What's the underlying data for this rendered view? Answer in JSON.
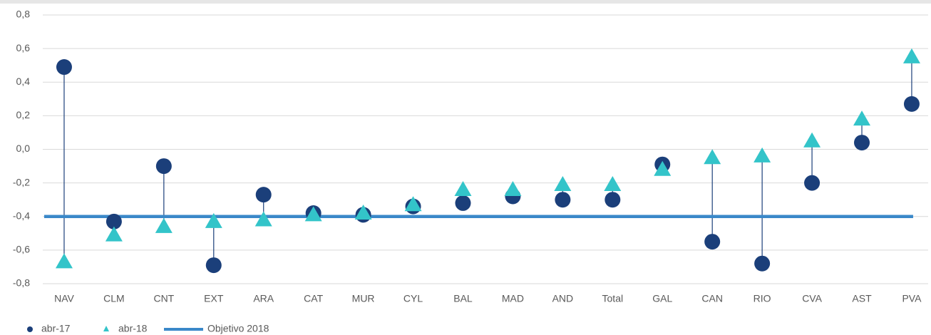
{
  "chart_data": {
    "type": "dotplot",
    "categories": [
      "NAV",
      "CLM",
      "CNT",
      "EXT",
      "ARA",
      "CAT",
      "MUR",
      "CYL",
      "BAL",
      "MAD",
      "AND",
      "Total",
      "GAL",
      "CAN",
      "RIO",
      "CVA",
      "AST",
      "PVA"
    ],
    "series": [
      {
        "name": "abr-17",
        "color": "#1b3f7a",
        "marker": "circle",
        "values": [
          0.49,
          -0.43,
          -0.1,
          -0.69,
          -0.27,
          -0.38,
          -0.39,
          -0.34,
          -0.32,
          -0.28,
          -0.3,
          -0.3,
          -0.09,
          -0.55,
          -0.68,
          -0.2,
          0.04,
          0.27
        ]
      },
      {
        "name": "abr-18",
        "color": "#33c4c9",
        "marker": "triangle",
        "values": [
          -0.67,
          -0.51,
          -0.46,
          -0.43,
          -0.42,
          -0.39,
          -0.38,
          -0.33,
          -0.24,
          -0.24,
          -0.21,
          -0.21,
          -0.12,
          -0.05,
          -0.04,
          0.05,
          0.18,
          0.55
        ]
      },
      {
        "name": "Objetivo 2018",
        "color": "#3a88c9",
        "marker": "line",
        "values": [
          -0.4,
          -0.4,
          -0.4,
          -0.4,
          -0.4,
          -0.4,
          -0.4,
          -0.4,
          -0.4,
          -0.4,
          -0.4,
          -0.4,
          -0.4,
          -0.4,
          -0.4,
          -0.4,
          -0.4,
          -0.4
        ]
      }
    ],
    "ylim": [
      -0.8,
      0.8
    ],
    "yticks": [
      {
        "value": -0.8,
        "label": "-0,8"
      },
      {
        "value": -0.6,
        "label": "-0,6"
      },
      {
        "value": -0.4,
        "label": "-0,4"
      },
      {
        "value": -0.2,
        "label": "-0,2"
      },
      {
        "value": 0,
        "label": "0,0"
      },
      {
        "value": 0.2,
        "label": "0,2"
      },
      {
        "value": 0.4,
        "label": "0,4"
      },
      {
        "value": 0.6,
        "label": "0,6"
      },
      {
        "value": 0.8,
        "label": "0,8"
      }
    ],
    "grid": true,
    "legend": "bottom-left"
  }
}
